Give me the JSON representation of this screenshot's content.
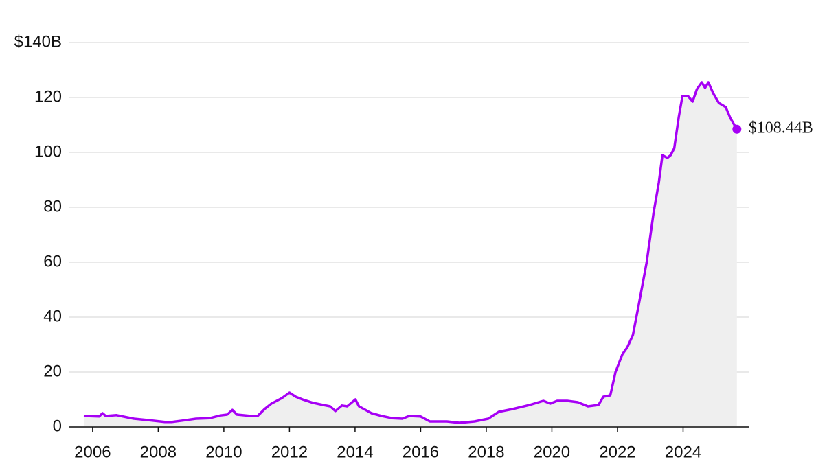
{
  "chart_data": {
    "type": "area",
    "x": [
      2005.73,
      2006.2,
      2006.3,
      2006.4,
      2006.73,
      2007.05,
      2007.26,
      2007.68,
      2008.2,
      2008.41,
      2008.73,
      2009.15,
      2009.57,
      2009.9,
      2010.1,
      2010.26,
      2010.4,
      2010.83,
      2011.03,
      2011.24,
      2011.45,
      2011.77,
      2012.0,
      2012.19,
      2012.4,
      2012.71,
      2013.03,
      2013.24,
      2013.4,
      2013.6,
      2013.76,
      2014.01,
      2014.12,
      2014.5,
      2014.81,
      2015.13,
      2015.44,
      2015.65,
      2016.0,
      2016.28,
      2016.8,
      2017.18,
      2017.64,
      2018.06,
      2018.38,
      2018.8,
      2019.32,
      2019.74,
      2019.95,
      2020.16,
      2020.47,
      2020.79,
      2021.1,
      2021.42,
      2021.57,
      2021.78,
      2021.94,
      2022.15,
      2022.3,
      2022.47,
      2022.64,
      2022.89,
      2023.1,
      2023.26,
      2023.37,
      2023.52,
      2023.62,
      2023.73,
      2023.87,
      2023.98,
      2024.15,
      2024.29,
      2024.42,
      2024.57,
      2024.67,
      2024.77,
      2024.92,
      2025.09,
      2025.3,
      2025.44,
      2025.64
    ],
    "values": [
      4,
      3.8,
      5,
      4,
      4.3,
      3.5,
      3,
      2.5,
      1.8,
      1.8,
      2.3,
      3,
      3.2,
      4.2,
      4.5,
      6.2,
      4.5,
      4,
      4,
      6.5,
      8.5,
      10.5,
      12.5,
      11,
      10,
      8.8,
      8,
      7.5,
      5.8,
      7.8,
      7.5,
      10,
      7.5,
      5,
      4,
      3.2,
      3,
      4,
      3.8,
      2,
      2,
      1.5,
      2,
      3,
      5.5,
      6.5,
      8,
      9.5,
      8.5,
      9.5,
      9.5,
      9,
      7.5,
      8,
      11,
      11.5,
      20,
      26.5,
      29,
      33.5,
      44,
      60,
      78,
      89,
      99,
      98,
      99,
      101.5,
      113,
      120.5,
      120.5,
      118.5,
      123,
      125.5,
      123.5,
      125.5,
      121.5,
      118,
      116.5,
      112.5,
      108.44
    ],
    "end_label": "$108.44B",
    "color": "#a600f5",
    "fill": "#efefef",
    "xlim": [
      2005.27,
      2026
    ],
    "xticks": [
      2006,
      2008,
      2010,
      2012,
      2014,
      2016,
      2018,
      2020,
      2022,
      2024
    ],
    "ylim": [
      0,
      140
    ],
    "yticks": [
      0,
      20,
      40,
      60,
      80,
      100,
      120,
      {
        "value": 140,
        "label": "$140B"
      }
    ],
    "grid": true
  }
}
